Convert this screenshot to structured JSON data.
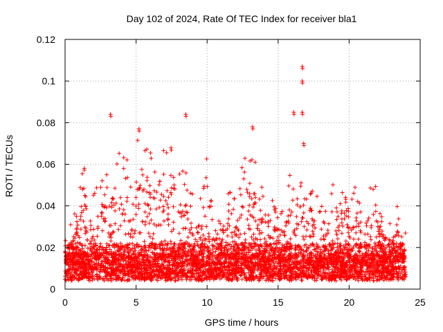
{
  "chart_data": {
    "type": "scatter",
    "title": "Day 102 of 2024, Rate Of TEC Index for receiver bla1",
    "xlabel": "GPS time / hours",
    "ylabel": "ROTI / TECUs",
    "xlim": [
      0,
      25
    ],
    "ylim": [
      0,
      0.12
    ],
    "xticks": [
      0,
      5,
      10,
      15,
      20,
      25
    ],
    "yticks": [
      0,
      0.02,
      0.04,
      0.06,
      0.08,
      0.1,
      0.12
    ],
    "xtick_labels": [
      "0",
      "5",
      "10",
      "15",
      "20",
      "25"
    ],
    "ytick_labels": [
      "0",
      "0.02",
      "0.04",
      "0.06",
      "0.08",
      "0.1",
      "0.12"
    ],
    "grid": true,
    "marker": "+",
    "colors": {
      "series": "#ff0000",
      "grid": "#a0a0a0",
      "axis": "#000000"
    },
    "notable_points": [
      {
        "x": 3.2,
        "y": 0.084
      },
      {
        "x": 5.2,
        "y": 0.077
      },
      {
        "x": 8.5,
        "y": 0.084
      },
      {
        "x": 13.2,
        "y": 0.078
      },
      {
        "x": 16.1,
        "y": 0.085
      },
      {
        "x": 16.7,
        "y": 0.107
      },
      {
        "x": 16.7,
        "y": 0.1
      },
      {
        "x": 16.7,
        "y": 0.085
      },
      {
        "x": 16.8,
        "y": 0.07
      }
    ],
    "activity_envelope": [
      [
        0.0,
        0.03
      ],
      [
        0.5,
        0.035
      ],
      [
        1.0,
        0.045
      ],
      [
        1.3,
        0.063
      ],
      [
        1.8,
        0.045
      ],
      [
        2.3,
        0.05
      ],
      [
        2.8,
        0.06
      ],
      [
        3.2,
        0.062
      ],
      [
        3.6,
        0.066
      ],
      [
        3.9,
        0.071
      ],
      [
        4.3,
        0.065
      ],
      [
        4.8,
        0.058
      ],
      [
        5.2,
        0.077
      ],
      [
        5.6,
        0.068
      ],
      [
        6.0,
        0.072
      ],
      [
        6.5,
        0.062
      ],
      [
        6.9,
        0.069
      ],
      [
        7.5,
        0.068
      ],
      [
        8.0,
        0.055
      ],
      [
        8.5,
        0.06
      ],
      [
        9.0,
        0.048
      ],
      [
        9.5,
        0.05
      ],
      [
        10.0,
        0.068
      ],
      [
        10.5,
        0.048
      ],
      [
        11.0,
        0.045
      ],
      [
        11.5,
        0.05
      ],
      [
        12.0,
        0.043
      ],
      [
        12.5,
        0.062
      ],
      [
        13.0,
        0.074
      ],
      [
        13.5,
        0.066
      ],
      [
        14.0,
        0.05
      ],
      [
        14.5,
        0.048
      ],
      [
        15.0,
        0.05
      ],
      [
        15.5,
        0.042
      ],
      [
        16.0,
        0.072
      ],
      [
        16.5,
        0.06
      ],
      [
        17.0,
        0.052
      ],
      [
        17.5,
        0.048
      ],
      [
        18.0,
        0.044
      ],
      [
        18.5,
        0.042
      ],
      [
        19.0,
        0.056
      ],
      [
        19.5,
        0.05
      ],
      [
        20.0,
        0.045
      ],
      [
        20.5,
        0.05
      ],
      [
        21.0,
        0.035
      ],
      [
        21.5,
        0.055
      ],
      [
        22.0,
        0.048
      ],
      [
        22.5,
        0.036
      ],
      [
        23.0,
        0.034
      ],
      [
        23.5,
        0.043
      ],
      [
        24.0,
        0.04
      ]
    ]
  }
}
